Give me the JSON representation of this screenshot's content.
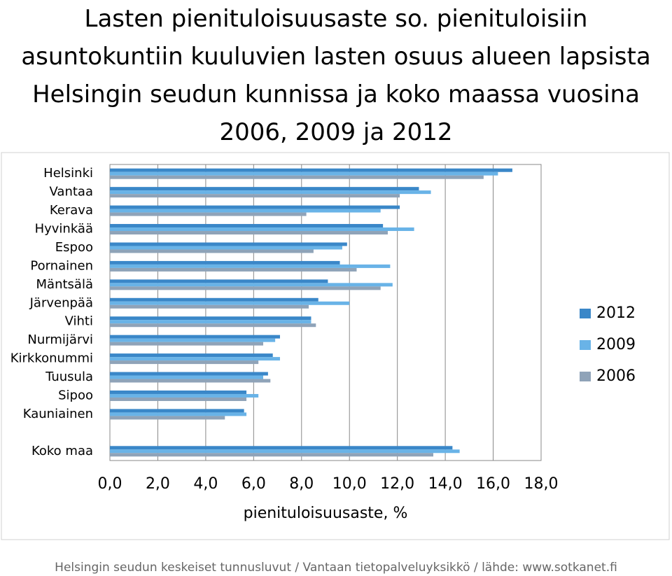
{
  "chart_data": {
    "type": "hbar",
    "title": "Lasten pienituloisuusaste so. pienituloisiin asuntokuntiin kuuluvien lasten osuus alueen lapsista Helsingin seudun kunnissa ja koko maassa vuosina 2006, 2009 ja 2012",
    "x_label": "pienituloisuusaste, %",
    "footer": "Helsingin seudun keskeiset tunnusluvut / Vantaan tietopalveluyksikkö / lähde: www.sotkanet.fi",
    "categories": [
      "Helsinki",
      "Vantaa",
      "Kerava",
      "Hyvinkää",
      "Espoo",
      "Pornainen",
      "Mäntsälä",
      "Järvenpää",
      "Vihti",
      "Nurmijärvi",
      "Kirkkonummi",
      "Tuusula",
      "Sipoo",
      "Kauniainen",
      null,
      "Koko maa"
    ],
    "series": [
      {
        "name": "2012",
        "color": "#3a87c8",
        "values": [
          16.8,
          12.9,
          12.1,
          11.4,
          9.9,
          9.6,
          9.1,
          8.7,
          8.4,
          7.1,
          6.8,
          6.6,
          5.7,
          5.6,
          null,
          14.3
        ]
      },
      {
        "name": "2009",
        "color": "#69b3e7",
        "values": [
          16.2,
          13.4,
          11.3,
          12.7,
          9.7,
          11.7,
          11.8,
          10.0,
          8.4,
          6.9,
          7.1,
          6.4,
          6.2,
          5.7,
          null,
          14.6
        ]
      },
      {
        "name": "2006",
        "color": "#8fa3b8",
        "values": [
          15.6,
          12.1,
          8.2,
          11.6,
          8.5,
          10.3,
          11.3,
          8.3,
          8.6,
          6.4,
          6.2,
          6.7,
          5.7,
          4.8,
          null,
          13.5
        ]
      }
    ],
    "xlim": [
      0,
      18
    ],
    "xticks": [
      {
        "value": 0,
        "label": "0,0"
      },
      {
        "value": 2,
        "label": "2,0"
      },
      {
        "value": 4,
        "label": "4,0"
      },
      {
        "value": 6,
        "label": "6,0"
      },
      {
        "value": 8,
        "label": "8,0"
      },
      {
        "value": 10,
        "label": "10,0"
      },
      {
        "value": 12,
        "label": "12,0"
      },
      {
        "value": 14,
        "label": "14,0"
      },
      {
        "value": 16,
        "label": "16,0"
      },
      {
        "value": 18,
        "label": "18,0"
      }
    ],
    "grid": true,
    "legend": "right"
  }
}
